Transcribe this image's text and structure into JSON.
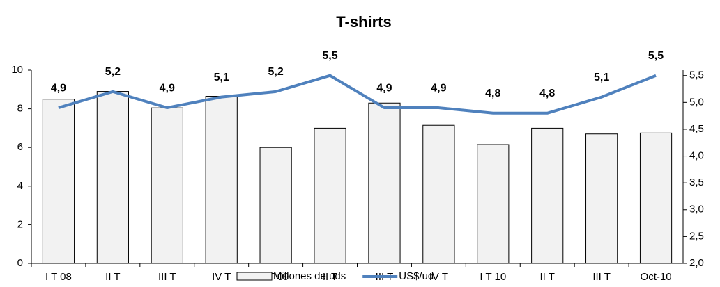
{
  "chart_data": {
    "type": "bar_line",
    "title": "T-shirts",
    "categories": [
      "I T 08",
      "II T",
      "III T",
      "IV T",
      "I T 09",
      "II T",
      "III T",
      "IV T",
      "I T 10",
      "II T",
      "III T",
      "Oct-10"
    ],
    "series": [
      {
        "name": "Millones de uds",
        "type": "bar",
        "color": "#f2f2f2",
        "values": [
          8.5,
          8.9,
          8.05,
          8.65,
          6.0,
          7.0,
          8.3,
          7.15,
          6.15,
          7.0,
          6.7,
          6.75
        ]
      },
      {
        "name": "US$/ud",
        "type": "line",
        "axis": "y2",
        "color": "#4f81bd",
        "values": [
          4.9,
          5.2,
          4.9,
          5.1,
          5.2,
          5.5,
          4.9,
          4.9,
          4.8,
          4.8,
          5.1,
          5.5
        ],
        "value_labels": [
          "4,9",
          "5,2",
          "4,9",
          "5,1",
          "5,2",
          "5,5",
          "4,9",
          "4,9",
          "4,8",
          "4,8",
          "5,1",
          "5,5"
        ]
      }
    ],
    "ylim": [
      0,
      10
    ],
    "yticks": [
      0,
      2,
      4,
      6,
      8,
      10
    ],
    "y2lim": [
      2,
      5.6
    ],
    "y2ticks": [
      {
        "value": 2,
        "label": "2,0"
      },
      {
        "value": 2.5,
        "label": "2,5"
      },
      {
        "value": 3,
        "label": "3,0"
      },
      {
        "value": 3.5,
        "label": "3,5"
      },
      {
        "value": 4,
        "label": "4,0"
      },
      {
        "value": 4.5,
        "label": "4,5"
      },
      {
        "value": 5,
        "label": "5,0"
      },
      {
        "value": 5.5,
        "label": "5,5"
      }
    ],
    "legend": "bottom"
  }
}
